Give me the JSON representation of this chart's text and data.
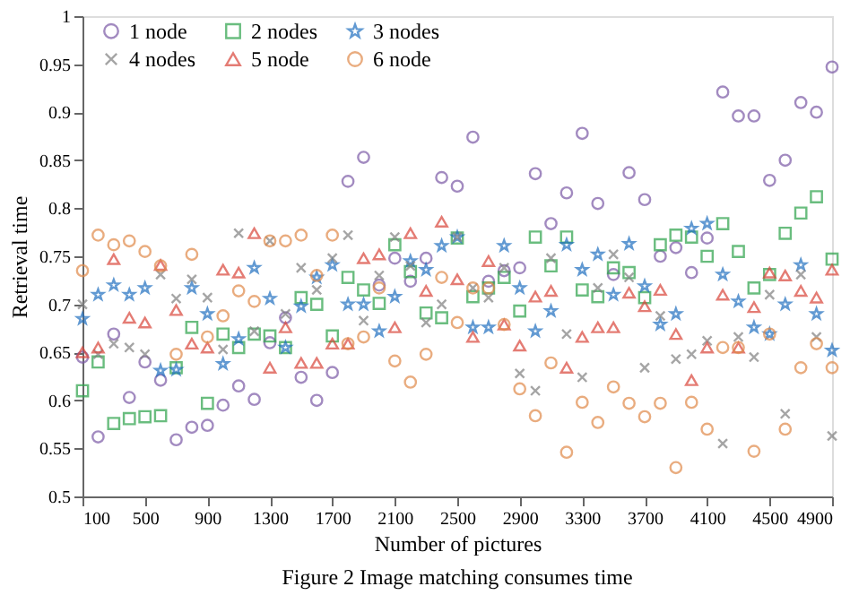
{
  "chart_data": {
    "type": "scatter",
    "xlabel": "Number of pictures",
    "ylabel": "Retrieval time",
    "annotations": [
      "Figure 2 Image matching consumes time"
    ],
    "x": [
      100,
      200,
      300,
      400,
      500,
      600,
      700,
      800,
      900,
      1000,
      1100,
      1200,
      1300,
      1400,
      1500,
      1600,
      1700,
      1800,
      1900,
      2000,
      2100,
      2200,
      2300,
      2400,
      2500,
      2600,
      2700,
      2800,
      2900,
      3000,
      3100,
      3200,
      3300,
      3400,
      3500,
      3600,
      3700,
      3800,
      3900,
      4000,
      4100,
      4200,
      4300,
      4400,
      4500,
      4600,
      4700,
      4800,
      4900
    ],
    "xlim": [
      100,
      4900
    ],
    "xticks": [
      100,
      500,
      900,
      1300,
      1700,
      2100,
      2500,
      2900,
      3300,
      3700,
      4100,
      4500,
      4900
    ],
    "ylim": [
      0.5,
      1
    ],
    "yticks": [
      0.5,
      0.55,
      0.6,
      0.65,
      0.7,
      0.75,
      0.8,
      0.85,
      0.9,
      0.95,
      1
    ],
    "grid": false,
    "legend": "top",
    "series": [
      {
        "name": "1 node",
        "color": "#7b5aa6",
        "marker": "circle",
        "values": [
          0.645,
          0.562,
          0.669,
          0.603,
          0.64,
          0.621,
          0.559,
          0.572,
          0.574,
          0.595,
          0.615,
          0.601,
          0.66,
          0.686,
          0.624,
          0.6,
          0.629,
          0.828,
          0.853,
          0.72,
          0.748,
          0.724,
          0.748,
          0.832,
          0.823,
          0.874,
          0.724,
          0.735,
          0.738,
          0.836,
          0.784,
          0.816,
          0.878,
          0.805,
          0.731,
          0.837,
          0.809,
          0.75,
          0.759,
          0.733,
          0.769,
          0.921,
          0.896,
          0.896,
          0.829,
          0.85,
          0.91,
          0.9,
          0.947
        ]
      },
      {
        "name": "2 nodes",
        "color": "#2ca24a",
        "marker": "square",
        "values": [
          0.61,
          0.64,
          0.576,
          0.581,
          0.583,
          0.584,
          0.634,
          0.676,
          0.597,
          0.669,
          0.655,
          0.669,
          0.667,
          0.655,
          0.707,
          0.7,
          0.667,
          0.728,
          0.715,
          0.701,
          0.762,
          0.734,
          0.691,
          0.686,
          0.769,
          0.708,
          0.717,
          0.728,
          0.693,
          0.77,
          0.74,
          0.77,
          0.715,
          0.708,
          0.738,
          0.733,
          0.707,
          0.762,
          0.772,
          0.77,
          0.75,
          0.784,
          0.755,
          0.717,
          0.731,
          0.774,
          0.795,
          0.812,
          0.747
        ]
      },
      {
        "name": "3 nodes",
        "color": "#1f6fbf",
        "marker": "star",
        "values": [
          0.685,
          0.71,
          0.72,
          0.71,
          0.717,
          0.631,
          0.632,
          0.717,
          0.69,
          0.638,
          0.664,
          0.738,
          0.706,
          0.655,
          0.698,
          0.728,
          0.741,
          0.7,
          0.7,
          0.672,
          0.708,
          0.745,
          0.736,
          0.761,
          0.77,
          0.676,
          0.676,
          0.761,
          0.717,
          0.672,
          0.693,
          0.762,
          0.736,
          0.752,
          0.71,
          0.763,
          0.719,
          0.679,
          0.69,
          0.779,
          0.784,
          0.731,
          0.703,
          0.676,
          0.669,
          0.7,
          0.741,
          0.69,
          0.652
        ]
      },
      {
        "name": "4 nodes",
        "color": "#808080",
        "marker": "cross",
        "values": [
          0.7,
          0.648,
          0.659,
          0.655,
          0.648,
          0.731,
          0.706,
          0.726,
          0.707,
          0.653,
          0.774,
          0.672,
          0.766,
          0.69,
          0.738,
          0.715,
          0.748,
          0.772,
          0.683,
          0.73,
          0.77,
          0.74,
          0.681,
          0.7,
          0.77,
          0.717,
          0.707,
          0.738,
          0.628,
          0.61,
          0.748,
          0.669,
          0.624,
          0.717,
          0.752,
          0.728,
          0.634,
          0.688,
          0.643,
          0.648,
          0.662,
          0.555,
          0.666,
          0.645,
          0.71,
          0.586,
          0.731,
          0.666,
          0.563
        ]
      },
      {
        "name": "5 node",
        "color": "#d9453a",
        "marker": "triangle",
        "values": [
          0.65,
          0.655,
          0.747,
          0.686,
          0.681,
          0.741,
          0.694,
          0.659,
          0.655,
          0.736,
          0.733,
          0.774,
          0.634,
          0.676,
          0.639,
          0.639,
          0.659,
          0.659,
          0.748,
          0.752,
          0.676,
          0.774,
          0.714,
          0.786,
          0.726,
          0.666,
          0.745,
          0.679,
          0.657,
          0.708,
          0.714,
          0.634,
          0.666,
          0.676,
          0.676,
          0.712,
          0.698,
          0.715,
          0.669,
          0.621,
          0.655,
          0.71,
          0.655,
          0.697,
          0.733,
          0.73,
          0.714,
          0.707,
          0.736
        ]
      },
      {
        "name": "6 node",
        "color": "#e08a4a",
        "marker": "circle",
        "values": [
          0.735,
          0.772,
          0.762,
          0.766,
          0.755,
          0.74,
          0.648,
          0.752,
          0.666,
          0.688,
          0.714,
          0.703,
          0.766,
          0.766,
          0.772,
          0.73,
          0.772,
          0.659,
          0.666,
          0.717,
          0.641,
          0.619,
          0.648,
          0.728,
          0.681,
          0.717,
          0.717,
          0.679,
          0.612,
          0.584,
          0.639,
          0.546,
          0.598,
          0.577,
          0.614,
          0.597,
          0.583,
          0.597,
          0.53,
          0.598,
          0.57,
          0.655,
          0.655,
          0.547,
          0.669,
          0.57,
          0.634,
          0.659,
          0.634
        ]
      }
    ]
  }
}
